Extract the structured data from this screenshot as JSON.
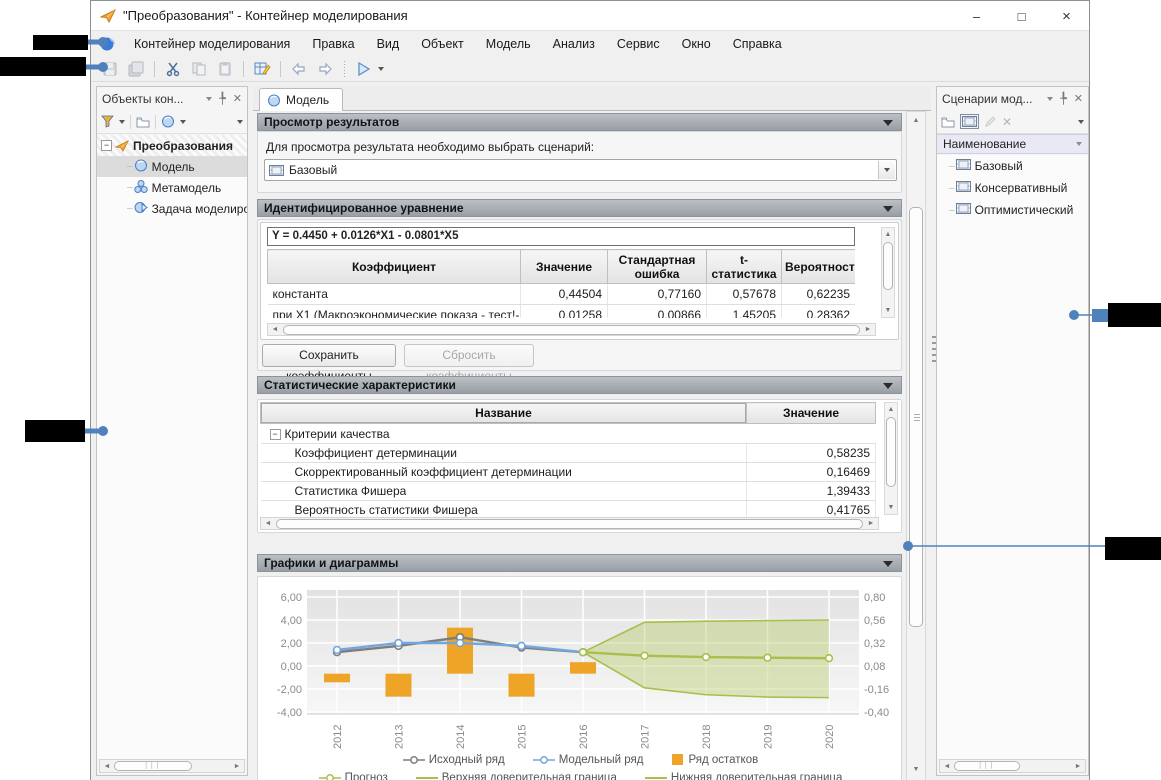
{
  "window": {
    "title": "\"Преобразования\" - Контейнер моделирования",
    "controls": {
      "minimize": "–",
      "maximize": "□",
      "close": "×"
    }
  },
  "menu": {
    "items": [
      "Контейнер моделирования",
      "Правка",
      "Вид",
      "Объект",
      "Модель",
      "Анализ",
      "Сервис",
      "Окно",
      "Справка"
    ]
  },
  "toolbar": {
    "icons": [
      "save",
      "save-all",
      "cut",
      "copy",
      "paste",
      "edit-report",
      "back",
      "forward",
      "run"
    ]
  },
  "left_panel": {
    "title": "Объекты кон...",
    "root": {
      "label": "Преобразования",
      "icon": "container-icon"
    },
    "items": [
      {
        "label": "Модель",
        "icon": "model-sphere-icon",
        "selected": true
      },
      {
        "label": "Метамодель",
        "icon": "metamodel-icon",
        "selected": false
      },
      {
        "label": "Задача моделирования",
        "icon": "task-icon",
        "selected": false
      }
    ]
  },
  "main": {
    "tab": "Модель",
    "results": {
      "title": "Просмотр результатов",
      "hint": "Для просмотра результата необходимо выбрать сценарий:",
      "scenario": "Базовый"
    },
    "equation": {
      "title": "Идентифицированное уравнение",
      "formula": "Y = 0.4450 + 0.0126*X1 - 0.0801*X5",
      "headers": [
        "Коэффициент",
        "Значение",
        "Стандартная ошибка",
        "t-статистика",
        "Вероятность"
      ],
      "rows": [
        [
          "константа",
          "0,44504",
          "0,77160",
          "0,57678",
          "0,62235"
        ],
        [
          "при X1 (Макроэкономические показа - тест!-",
          "0,01258",
          "0,00866",
          "1,45205",
          "0,28362"
        ]
      ],
      "save_btn": "Сохранить коэффициенты",
      "reset_btn": "Сбросить коэффициенты"
    },
    "stats": {
      "title": "Статистические характеристики",
      "headers": [
        "Название",
        "Значение"
      ],
      "group": "Критерии качества",
      "rows": [
        [
          "Коэффициент детерминации",
          "0,58235"
        ],
        [
          "Скорректированный коэффициент детерминации",
          "0,16469"
        ],
        [
          "Статистика Фишера",
          "1,39433"
        ],
        [
          "Вероятность статистики Фишера",
          "0,41765"
        ]
      ]
    },
    "charts_title": "Графики и диаграммы"
  },
  "right_panel": {
    "title": "Сценарии мод...",
    "column": "Наименование",
    "items": [
      "Базовый",
      "Консервативный",
      "Оптимистический"
    ]
  },
  "chart_data": {
    "type": "line",
    "x": [
      2012,
      2013,
      2014,
      2015,
      2016,
      2017,
      2018,
      2019,
      2020
    ],
    "left_axis": {
      "ticks": [
        "6,00",
        "4,00",
        "2,00",
        "0,00",
        "-2,00",
        "-4,00"
      ],
      "range": [
        -4,
        6
      ]
    },
    "right_axis": {
      "ticks": [
        "0,80",
        "0,56",
        "0,32",
        "0,08",
        "-0,16",
        "-0,40"
      ],
      "range": [
        -0.4,
        0.8
      ]
    },
    "grid": true,
    "legend_position": "bottom",
    "series": [
      {
        "name": "Исходный ряд",
        "type": "line",
        "axis": "left",
        "color": "#7d7d7d",
        "marker": "circle-line",
        "values": [
          1.2,
          1.75,
          2.5,
          1.6,
          1.2,
          null,
          null,
          null,
          null
        ]
      },
      {
        "name": "Модельный ряд",
        "type": "line",
        "axis": "left",
        "color": "#74a5dc",
        "marker": "circle-line",
        "values": [
          1.4,
          2.0,
          2.0,
          1.75,
          1.2,
          null,
          null,
          null,
          null
        ]
      },
      {
        "name": "Ряд остатков",
        "type": "bar",
        "axis": "right",
        "color": "#eda427",
        "marker": "square",
        "values": [
          -0.09,
          -0.24,
          0.48,
          -0.24,
          0.12,
          null,
          null,
          null,
          null
        ]
      },
      {
        "name": "Прогноз",
        "type": "line",
        "axis": "left",
        "color": "#a6c04c",
        "marker": "circle-line",
        "values": [
          null,
          null,
          null,
          null,
          1.2,
          0.9,
          0.78,
          0.72,
          0.68
        ]
      },
      {
        "name": "Верхняя доверительная граница",
        "type": "bound",
        "axis": "left",
        "color": "#a6c04c",
        "marker": "line",
        "values": [
          null,
          null,
          null,
          null,
          1.2,
          3.8,
          3.9,
          3.95,
          4.0
        ]
      },
      {
        "name": "Нижняя доверительная граница",
        "type": "bound",
        "axis": "left",
        "color": "#a6c04c",
        "marker": "line",
        "values": [
          null,
          null,
          null,
          null,
          1.2,
          -1.9,
          -2.5,
          -2.7,
          -2.75
        ]
      }
    ],
    "band_fill": "rgba(168,194,78,0.35)"
  },
  "colors": {
    "callout": "#4f81bd",
    "orange": "#eda427",
    "green": "#a6c04c",
    "blue_line": "#74a5dc",
    "gray_line": "#7d7d7d"
  }
}
